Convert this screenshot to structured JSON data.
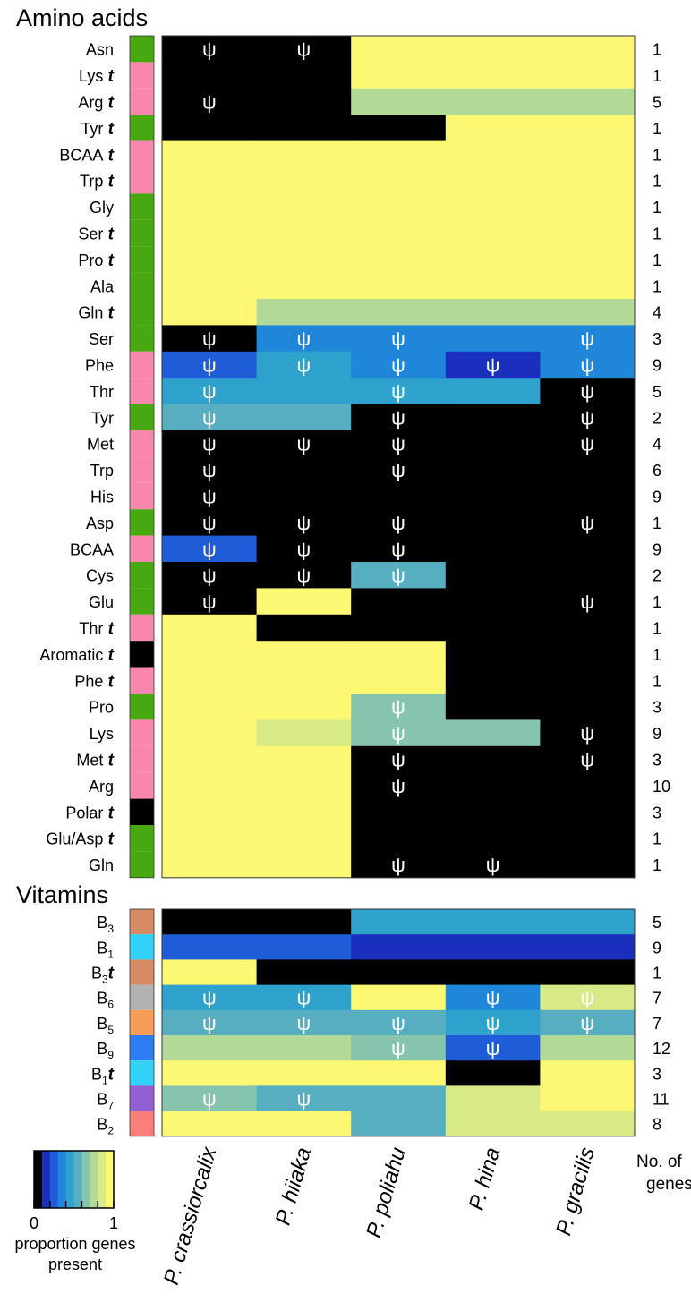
{
  "chart_data": {
    "type": "heatmap",
    "title": "",
    "columns": [
      "P. crassiorcalix",
      "P. hiiaka",
      "P. poliahu",
      "P. hina",
      "P. gracilis"
    ],
    "genes_header": "No. of genes",
    "pseudo_symbol": "ψ",
    "transport_marker": "t",
    "colors": {
      "class_green": "#47a80f",
      "class_pink": "#f986ad",
      "class_black": "#000000",
      "grid_border": "#333333"
    },
    "colormap": [
      "#000000",
      "#1a2fbe",
      "#1e5cd8",
      "#1f86d9",
      "#2ea1cd",
      "#57aec0",
      "#86c4ad",
      "#b3d997",
      "#d8ea85",
      "#fcf873"
    ],
    "legend": {
      "title": "proportion genes present",
      "min_label": "0",
      "max_label": "1",
      "range": [
        0,
        1
      ]
    },
    "sections": [
      {
        "label": "Amino acids",
        "rows": [
          {
            "name": "Asn",
            "transport": false,
            "klass": "#47a80f",
            "values": [
              0,
              0,
              1,
              1,
              1
            ],
            "pseudo": [
              1,
              1,
              0,
              0,
              0
            ],
            "genes": "1"
          },
          {
            "name": "Lys",
            "transport": true,
            "klass": "#f986ad",
            "values": [
              0,
              0,
              1,
              1,
              1
            ],
            "pseudo": [
              0,
              0,
              0,
              0,
              0
            ],
            "genes": "1"
          },
          {
            "name": "Arg",
            "transport": true,
            "klass": "#f986ad",
            "values": [
              0,
              0,
              0.8,
              0.8,
              0.8
            ],
            "pseudo": [
              1,
              0,
              0,
              0,
              0
            ],
            "genes": "5"
          },
          {
            "name": "Tyr",
            "transport": true,
            "klass": "#47a80f",
            "values": [
              0,
              0,
              0,
              1,
              1
            ],
            "pseudo": [
              0,
              0,
              0,
              0,
              0
            ],
            "genes": "1"
          },
          {
            "name": "BCAA",
            "transport": true,
            "klass": "#f986ad",
            "values": [
              1,
              1,
              1,
              1,
              1
            ],
            "pseudo": [
              0,
              0,
              0,
              0,
              0
            ],
            "genes": "1"
          },
          {
            "name": "Trp",
            "transport": true,
            "klass": "#f986ad",
            "values": [
              1,
              1,
              1,
              1,
              1
            ],
            "pseudo": [
              0,
              0,
              0,
              0,
              0
            ],
            "genes": "1"
          },
          {
            "name": "Gly",
            "transport": false,
            "klass": "#47a80f",
            "values": [
              1,
              1,
              1,
              1,
              1
            ],
            "pseudo": [
              0,
              0,
              0,
              0,
              0
            ],
            "genes": "1"
          },
          {
            "name": "Ser",
            "transport": true,
            "klass": "#47a80f",
            "values": [
              1,
              1,
              1,
              1,
              1
            ],
            "pseudo": [
              0,
              0,
              0,
              0,
              0
            ],
            "genes": "1"
          },
          {
            "name": "Pro",
            "transport": true,
            "klass": "#47a80f",
            "values": [
              1,
              1,
              1,
              1,
              1
            ],
            "pseudo": [
              0,
              0,
              0,
              0,
              0
            ],
            "genes": "1"
          },
          {
            "name": "Ala",
            "transport": false,
            "klass": "#47a80f",
            "values": [
              1,
              1,
              1,
              1,
              1
            ],
            "pseudo": [
              0,
              0,
              0,
              0,
              0
            ],
            "genes": "1"
          },
          {
            "name": "Gln",
            "transport": true,
            "klass": "#47a80f",
            "values": [
              1,
              0.75,
              0.75,
              0.75,
              0.75
            ],
            "pseudo": [
              0,
              0,
              0,
              0,
              0
            ],
            "genes": "4"
          },
          {
            "name": "Ser",
            "transport": false,
            "klass": "#47a80f",
            "values": [
              0,
              0.33,
              0.33,
              0.33,
              0.33
            ],
            "pseudo": [
              1,
              1,
              1,
              0,
              1
            ],
            "genes": "3"
          },
          {
            "name": "Phe",
            "transport": false,
            "klass": "#f986ad",
            "values": [
              0.22,
              0.44,
              0.33,
              0.11,
              0.33
            ],
            "pseudo": [
              1,
              1,
              1,
              1,
              1
            ],
            "genes": "9"
          },
          {
            "name": "Thr",
            "transport": false,
            "klass": "#f986ad",
            "values": [
              0.4,
              0.4,
              0.4,
              0.4,
              0
            ],
            "pseudo": [
              1,
              0,
              1,
              0,
              1
            ],
            "genes": "5"
          },
          {
            "name": "Tyr",
            "transport": false,
            "klass": "#47a80f",
            "values": [
              0.5,
              0.5,
              0,
              0,
              0
            ],
            "pseudo": [
              1,
              0,
              1,
              0,
              1
            ],
            "genes": "2"
          },
          {
            "name": "Met",
            "transport": false,
            "klass": "#f986ad",
            "values": [
              0,
              0,
              0,
              0,
              0
            ],
            "pseudo": [
              1,
              1,
              1,
              0,
              1
            ],
            "genes": "4"
          },
          {
            "name": "Trp",
            "transport": false,
            "klass": "#f986ad",
            "values": [
              0,
              0,
              0,
              0,
              0
            ],
            "pseudo": [
              1,
              0,
              1,
              0,
              0
            ],
            "genes": "6"
          },
          {
            "name": "His",
            "transport": false,
            "klass": "#f986ad",
            "values": [
              0,
              0,
              0,
              0,
              0
            ],
            "pseudo": [
              1,
              0,
              0,
              0,
              0
            ],
            "genes": "9"
          },
          {
            "name": "Asp",
            "transport": false,
            "klass": "#47a80f",
            "values": [
              0,
              0,
              0,
              0,
              0
            ],
            "pseudo": [
              1,
              1,
              1,
              0,
              1
            ],
            "genes": "1"
          },
          {
            "name": "BCAA",
            "transport": false,
            "klass": "#f986ad",
            "values": [
              0.22,
              0,
              0,
              0,
              0
            ],
            "pseudo": [
              1,
              1,
              1,
              0,
              0
            ],
            "genes": "9"
          },
          {
            "name": "Cys",
            "transport": false,
            "klass": "#47a80f",
            "values": [
              0,
              0,
              0.5,
              0,
              0
            ],
            "pseudo": [
              1,
              1,
              1,
              0,
              0
            ],
            "genes": "2"
          },
          {
            "name": "Glu",
            "transport": false,
            "klass": "#47a80f",
            "values": [
              0,
              1,
              0,
              0,
              0
            ],
            "pseudo": [
              1,
              0,
              0,
              0,
              1
            ],
            "genes": "1"
          },
          {
            "name": "Thr",
            "transport": true,
            "klass": "#f986ad",
            "values": [
              1,
              0,
              0,
              0,
              0
            ],
            "pseudo": [
              0,
              0,
              0,
              0,
              0
            ],
            "genes": "1"
          },
          {
            "name": "Aromatic",
            "transport": true,
            "klass": "#000000",
            "values": [
              1,
              1,
              1,
              0,
              0
            ],
            "pseudo": [
              0,
              0,
              0,
              0,
              0
            ],
            "genes": "1"
          },
          {
            "name": "Phe",
            "transport": true,
            "klass": "#f986ad",
            "values": [
              1,
              1,
              1,
              0,
              0
            ],
            "pseudo": [
              0,
              0,
              0,
              0,
              0
            ],
            "genes": "1"
          },
          {
            "name": "Pro",
            "transport": false,
            "klass": "#47a80f",
            "values": [
              1,
              1,
              0.67,
              0,
              0
            ],
            "pseudo": [
              0,
              0,
              1,
              0,
              0
            ],
            "genes": "3"
          },
          {
            "name": "Lys",
            "transport": false,
            "klass": "#f986ad",
            "values": [
              1,
              0.89,
              0.67,
              0.67,
              0
            ],
            "pseudo": [
              0,
              0,
              1,
              0,
              1
            ],
            "genes": "9"
          },
          {
            "name": "Met",
            "transport": true,
            "klass": "#f986ad",
            "values": [
              1,
              1,
              0,
              0,
              0
            ],
            "pseudo": [
              0,
              0,
              1,
              0,
              1
            ],
            "genes": "3"
          },
          {
            "name": "Arg",
            "transport": false,
            "klass": "#f986ad",
            "values": [
              1,
              1,
              0,
              0,
              0
            ],
            "pseudo": [
              0,
              0,
              1,
              0,
              0
            ],
            "genes": "10"
          },
          {
            "name": "Polar",
            "transport": true,
            "klass": "#000000",
            "values": [
              1,
              1,
              0,
              0,
              0
            ],
            "pseudo": [
              0,
              0,
              0,
              0,
              0
            ],
            "genes": "3"
          },
          {
            "name": "Glu/Asp",
            "transport": true,
            "klass": "#47a80f",
            "values": [
              1,
              1,
              0,
              0,
              0
            ],
            "pseudo": [
              0,
              0,
              0,
              0,
              0
            ],
            "genes": "1"
          },
          {
            "name": "Gln",
            "transport": false,
            "klass": "#47a80f",
            "values": [
              1,
              1,
              0,
              0,
              0
            ],
            "pseudo": [
              0,
              0,
              1,
              1,
              0
            ],
            "genes": "1"
          }
        ]
      },
      {
        "label": "Vitamins",
        "rows": [
          {
            "name": "B",
            "sub": "3",
            "transport": false,
            "klass": "#d58c62",
            "values": [
              0,
              0,
              0.4,
              0.4,
              0.4
            ],
            "pseudo": [
              0,
              0,
              0,
              0,
              0
            ],
            "genes": "5"
          },
          {
            "name": "B",
            "sub": "1",
            "transport": false,
            "klass": "#30d2f6",
            "values": [
              0.22,
              0.22,
              0.11,
              0.11,
              0.11
            ],
            "pseudo": [
              0,
              0,
              0,
              0,
              0
            ],
            "genes": "9"
          },
          {
            "name": "B",
            "sub": "3",
            "transport": true,
            "klass": "#d58c62",
            "values": [
              1,
              0,
              0,
              0,
              0
            ],
            "pseudo": [
              0,
              0,
              0,
              0,
              0
            ],
            "genes": "1"
          },
          {
            "name": "B",
            "sub": "6",
            "transport": false,
            "klass": "#b1b1b1",
            "values": [
              0.43,
              0.43,
              1,
              0.29,
              0.86
            ],
            "pseudo": [
              1,
              1,
              0,
              1,
              1
            ],
            "genes": "7"
          },
          {
            "name": "B",
            "sub": "5",
            "transport": false,
            "klass": "#f89c5a",
            "values": [
              0.57,
              0.57,
              0.57,
              0.43,
              0.57
            ],
            "pseudo": [
              1,
              1,
              1,
              1,
              1
            ],
            "genes": "7"
          },
          {
            "name": "B",
            "sub": "9",
            "transport": false,
            "klass": "#2c7cf4",
            "values": [
              0.83,
              0.83,
              0.67,
              0.17,
              0.75
            ],
            "pseudo": [
              0,
              0,
              1,
              1,
              0
            ],
            "genes": "12"
          },
          {
            "name": "B",
            "sub": "1",
            "transport": true,
            "klass": "#30d2f6",
            "values": [
              1,
              1,
              1,
              0,
              1
            ],
            "pseudo": [
              0,
              0,
              0,
              0,
              0
            ],
            "genes": "3"
          },
          {
            "name": "B",
            "sub": "7",
            "transport": false,
            "klass": "#925fd3",
            "values": [
              0.7,
              0.6,
              0.6,
              0.9,
              1
            ],
            "pseudo": [
              1,
              1,
              0,
              0,
              0
            ],
            "genes": "11"
          },
          {
            "name": "B",
            "sub": "2",
            "transport": false,
            "klass": "#f97f78",
            "values": [
              1,
              1,
              0.5,
              0.88,
              0.88
            ],
            "pseudo": [
              0,
              0,
              0,
              0,
              0
            ],
            "genes": "8"
          }
        ]
      }
    ]
  }
}
